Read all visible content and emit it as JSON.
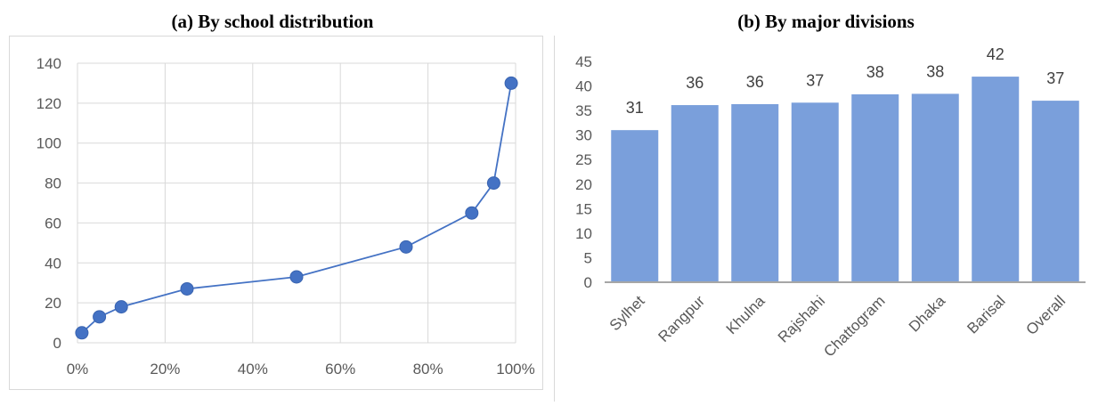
{
  "chart_data": [
    {
      "type": "line",
      "title": "(a)  By school distribution",
      "xlabel": "",
      "ylabel": "",
      "x": [
        0.01,
        0.05,
        0.1,
        0.25,
        0.5,
        0.75,
        0.9,
        0.95,
        0.99
      ],
      "series": [
        {
          "values": [
            5,
            13,
            18,
            27,
            33,
            48,
            65,
            80,
            130
          ]
        }
      ],
      "xlim": [
        0,
        1
      ],
      "ylim": [
        0,
        140
      ],
      "xticks": [
        "0%",
        "20%",
        "40%",
        "60%",
        "80%",
        "100%"
      ],
      "yticks": [
        "0",
        "20",
        "40",
        "60",
        "80",
        "100",
        "120",
        "140"
      ],
      "grid": true,
      "color": "#4472c4"
    },
    {
      "type": "bar",
      "title": "(b)  By major divisions",
      "xlabel": "",
      "ylabel": "",
      "categories": [
        "Sylhet",
        "Rangpur",
        "Khulna",
        "Rajshahi",
        "Chattogram",
        "Dhaka",
        "Barisal",
        "Overall"
      ],
      "values": [
        31,
        36.1,
        36.3,
        36.6,
        38.3,
        38.4,
        41.9,
        37
      ],
      "data_labels": [
        "31",
        "36",
        "36",
        "37",
        "38",
        "38",
        "42",
        "37"
      ],
      "ylim": [
        0,
        45
      ],
      "yticks": [
        "0",
        "5",
        "10",
        "15",
        "20",
        "25",
        "30",
        "35",
        "40",
        "45"
      ],
      "grid": false,
      "color": "#7a9fdb"
    }
  ]
}
